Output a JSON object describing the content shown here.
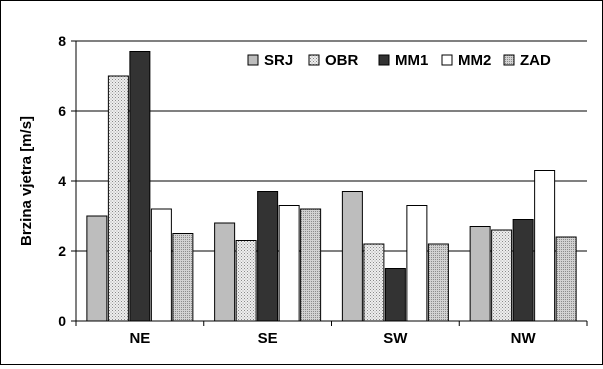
{
  "chart_data": {
    "type": "bar",
    "title": "",
    "xlabel": "",
    "ylabel": "Brzina vjetra [m/s]",
    "ylim": [
      0,
      8
    ],
    "yticks": [
      0,
      2,
      4,
      6,
      8
    ],
    "grid": true,
    "legend_position": "top-right",
    "categories": [
      "NE",
      "SE",
      "SW",
      "NW"
    ],
    "series": [
      {
        "name": "SRJ",
        "values": [
          3.0,
          2.8,
          3.7,
          2.7
        ],
        "color": "#bdbdbd",
        "pattern": "solid"
      },
      {
        "name": "OBR",
        "values": [
          7.0,
          2.3,
          2.2,
          2.6
        ],
        "color": "#e6e6e6",
        "pattern": "dots"
      },
      {
        "name": "MM1",
        "values": [
          7.7,
          3.7,
          1.5,
          2.9
        ],
        "color": "#333333",
        "pattern": "solid"
      },
      {
        "name": "MM2",
        "values": [
          3.2,
          3.3,
          3.3,
          4.3
        ],
        "color": "#ffffff",
        "pattern": "solid"
      },
      {
        "name": "ZAD",
        "values": [
          2.5,
          3.2,
          2.2,
          2.4
        ],
        "color": "#c8c8c8",
        "pattern": "dense-dots"
      }
    ]
  }
}
